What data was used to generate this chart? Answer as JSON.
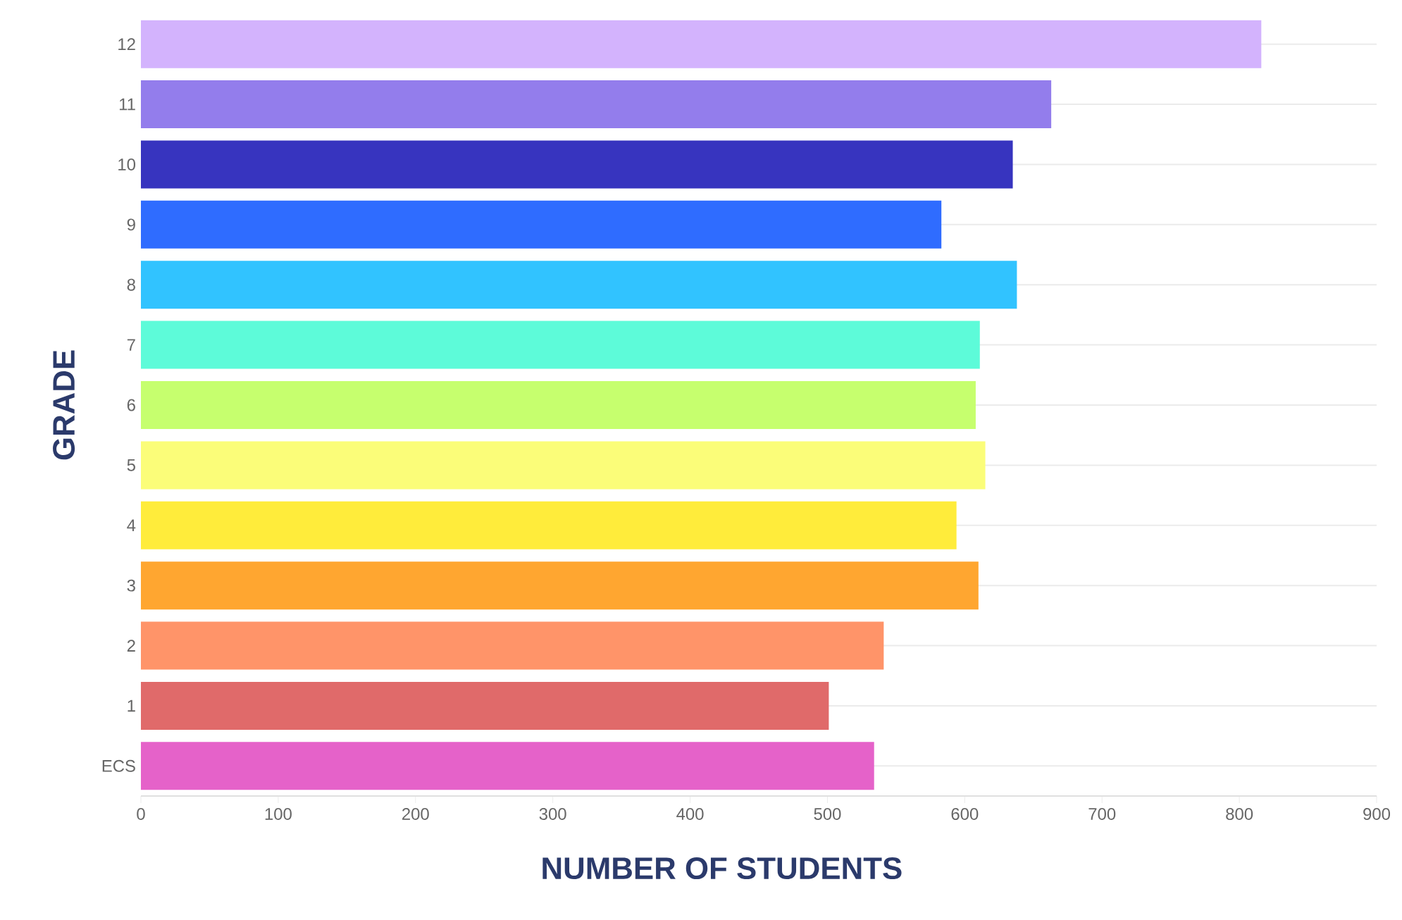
{
  "chart_data": {
    "type": "bar",
    "orientation": "horizontal",
    "xlabel": "NUMBER OF STUDENTS",
    "ylabel": "GRADE",
    "categories": [
      "12",
      "11",
      "10",
      "9",
      "8",
      "7",
      "6",
      "5",
      "4",
      "3",
      "2",
      "1",
      "ECS"
    ],
    "values": [
      816,
      663,
      635,
      583,
      638,
      611,
      608,
      615,
      594,
      610,
      541,
      501,
      534
    ],
    "colors": [
      "#d3b3fd",
      "#937dec",
      "#3734bf",
      "#2f6cff",
      "#31c3ff",
      "#5dfbd9",
      "#c6ff6e",
      "#fbfd79",
      "#ffec3b",
      "#ffa630",
      "#ff9469",
      "#e06a6a",
      "#e562c9"
    ],
    "xlim": [
      0,
      900
    ],
    "xticks": [
      0,
      100,
      200,
      300,
      400,
      500,
      600,
      700,
      800,
      900
    ],
    "grid": "y"
  }
}
